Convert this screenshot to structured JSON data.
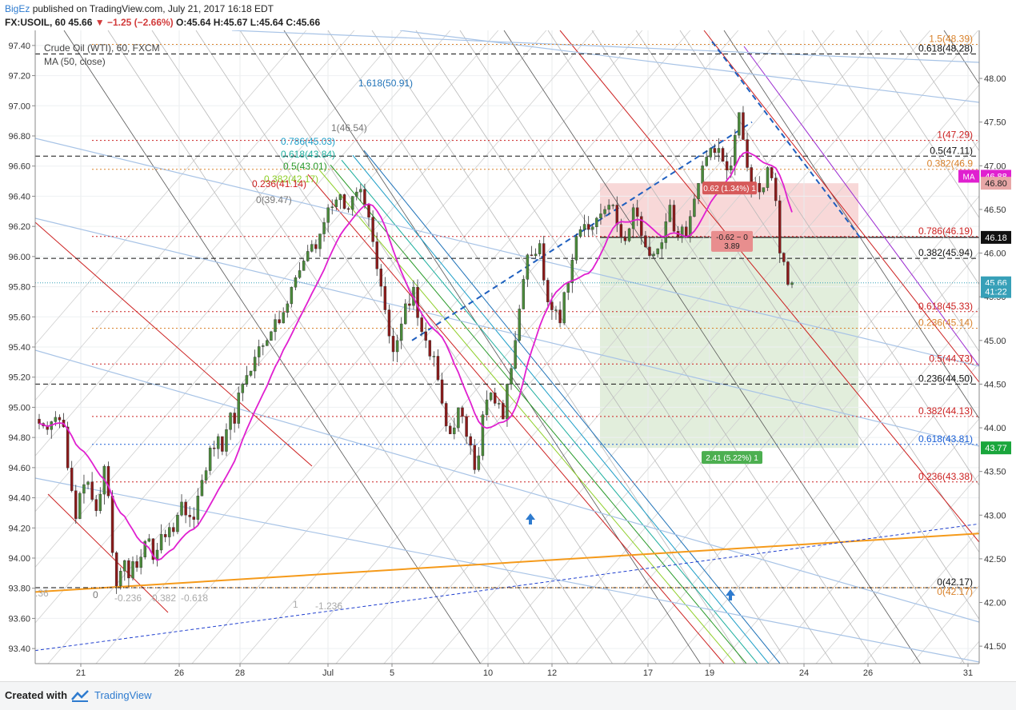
{
  "header": {
    "author": "BigEz",
    "published_text": "published on TradingView.com, July 21, 2017 16:18 EDT",
    "symbol": "FX:USOIL, 60",
    "last": "45.66",
    "change": "▼ −1.25 (−2.66%)",
    "ohlc": "O:45.64 H:45.67 L:45.64 C:45.66"
  },
  "legend": {
    "series_title": "Crude Oil (WTI), 60, FXCM",
    "indicator": "MA (50, close)"
  },
  "footer": {
    "created_with": "Created with",
    "brand": "TradingView"
  },
  "colors": {
    "up_candle": "#4a8a3a",
    "down_candle": "#8b1a1a",
    "ma": "#e020d0",
    "pitchfork_blue": "#1f5fbf",
    "orange_line": "#f59a1a",
    "fib_red": "#cc2020"
  },
  "chart_data": {
    "type": "candlestick",
    "title": "Crude Oil (WTI), 60, FXCM",
    "left_axis": {
      "range": [
        93.3,
        97.5
      ],
      "ticks": [
        "97.40",
        "97.20",
        "97.00",
        "96.80",
        "96.60",
        "96.40",
        "96.20",
        "96.00",
        "95.80",
        "95.60",
        "95.40",
        "95.20",
        "95.00",
        "94.80",
        "94.60",
        "94.40",
        "94.20",
        "94.00",
        "93.80",
        "93.60",
        "93.40"
      ]
    },
    "right_axis": {
      "range": [
        41.3,
        48.55
      ],
      "ticks": [
        "48.00",
        "47.50",
        "47.00",
        "46.50",
        "46.00",
        "45.50",
        "45.00",
        "44.50",
        "44.00",
        "43.50",
        "43.00",
        "42.50",
        "42.00",
        "41.50"
      ],
      "price_tags": [
        {
          "text": "46.88",
          "value": 46.88,
          "color": "#e020d0",
          "label": "MA"
        },
        {
          "text": "46.80",
          "value": 46.8,
          "color": "#e8a7a7"
        },
        {
          "text": "46.18",
          "value": 46.18,
          "color": "#111111"
        },
        {
          "text": "45.66",
          "value": 45.66,
          "color": "#37a0b8"
        },
        {
          "text": "41:22",
          "value": 45.56,
          "color": "#37a0b8"
        },
        {
          "text": "43.77",
          "value": 43.77,
          "color": "#1aa63c"
        }
      ]
    },
    "x_axis": {
      "labels": [
        "21",
        "26",
        "28",
        "Jul",
        "5",
        "10",
        "12",
        "17",
        "19",
        "24",
        "26",
        "31"
      ]
    },
    "candles_close": [
      44.05,
      44.02,
      43.98,
      44.07,
      44.12,
      44.09,
      44.01,
      43.54,
      43.28,
      42.96,
      43.25,
      43.35,
      43.38,
      43.18,
      43.05,
      43.24,
      43.56,
      43.22,
      42.57,
      42.19,
      42.36,
      42.48,
      42.28,
      42.47,
      42.4,
      42.52,
      42.7,
      42.73,
      42.49,
      42.6,
      42.78,
      42.75,
      42.86,
      42.81,
      43.0,
      43.15,
      43.0,
      42.98,
      42.95,
      43.22,
      43.4,
      43.51,
      43.77,
      43.76,
      43.9,
      43.73,
      43.98,
      44.17,
      44.05,
      44.4,
      44.5,
      44.6,
      44.65,
      44.81,
      44.93,
      44.94,
      45.0,
      45.1,
      45.24,
      45.2,
      45.32,
      45.42,
      45.61,
      45.72,
      45.8,
      45.91,
      46.02,
      46.1,
      46.05,
      46.22,
      46.35,
      46.52,
      46.53,
      46.61,
      46.67,
      46.51,
      46.5,
      46.65,
      46.7,
      46.73,
      46.56,
      46.41,
      46.13,
      45.82,
      45.62,
      45.35,
      45.05,
      44.87,
      45.0,
      45.19,
      45.42,
      45.4,
      45.61,
      45.26,
      45.1,
      45.0,
      44.82,
      44.82,
      44.55,
      44.28,
      44.02,
      43.93,
      44.0,
      44.23,
      44.13,
      43.9,
      43.8,
      43.52,
      43.68,
      44.15,
      44.32,
      44.4,
      44.28,
      44.28,
      44.1,
      44.5,
      44.68,
      45.0,
      45.36,
      45.7,
      45.98,
      45.97,
      45.99,
      46.11,
      45.69,
      45.44,
      45.35,
      45.35,
      45.2,
      45.55,
      45.66,
      45.92,
      46.19,
      46.27,
      46.33,
      46.27,
      46.3,
      46.4,
      46.45,
      46.5,
      46.55,
      46.55,
      46.33,
      46.18,
      46.14,
      46.28,
      46.52,
      46.42,
      46.2,
      46.07,
      45.97,
      45.99,
      46.05,
      46.12,
      46.36,
      46.55,
      46.25,
      46.18,
      46.3,
      46.2,
      46.42,
      46.62,
      46.8,
      47.0,
      47.1,
      47.2,
      47.15,
      47.2,
      47.05,
      46.95,
      47.0,
      47.35,
      47.61,
      47.3,
      46.98,
      46.75,
      46.8,
      46.7,
      46.75,
      46.98,
      46.86,
      46.6,
      46.0,
      45.9,
      45.64,
      45.66
    ],
    "moving_average": {
      "name": "MA (50, close)",
      "last": 46.88
    },
    "fib_retracements_right": [
      {
        "label": "1(47.29)",
        "value": 47.29,
        "color": "#cc2020"
      },
      {
        "label": "0.5(47.11)",
        "value": 47.11,
        "color": "#111111"
      },
      {
        "label": "0.382(46.9",
        "value": 46.96,
        "color": "#d9822b"
      },
      {
        "label": "0.618(48.28)",
        "value": 48.28,
        "color": "#111111"
      },
      {
        "label": "1.5(48.39)",
        "value": 48.39,
        "color": "#d9822b"
      },
      {
        "label": "0.786(46.19)",
        "value": 46.19,
        "color": "#cc2020"
      },
      {
        "label": "0.382(45.94)",
        "value": 45.94,
        "color": "#111111"
      },
      {
        "label": "0.618(45.33)",
        "value": 45.33,
        "color": "#cc2020"
      },
      {
        "label": "0.236(45.14)",
        "value": 45.14,
        "color": "#d9822b"
      },
      {
        "label": "0.5(44.73)",
        "value": 44.73,
        "color": "#cc2020"
      },
      {
        "label": "0.236(44.50)",
        "value": 44.5,
        "color": "#111111"
      },
      {
        "label": "0.382(44.13)",
        "value": 44.13,
        "color": "#cc2020"
      },
      {
        "label": "0.618(43.81)",
        "value": 43.81,
        "color": "#1a5fd6"
      },
      {
        "label": "0.236(43.38)",
        "value": 43.38,
        "color": "#cc2020"
      },
      {
        "label": "0(42.17)",
        "value": 42.17,
        "color": "#111111"
      },
      {
        "label": "0(42.17)",
        "value": 42.17,
        "color": "#d9822b"
      }
    ],
    "fan_labels": [
      {
        "label": "1.618(50.91)",
        "color": "#1f72b8"
      },
      {
        "label": "1(46.54)",
        "color": "#777777"
      },
      {
        "label": "0.786(45.03)",
        "color": "#1f9fc8"
      },
      {
        "label": "0.618(43.84)",
        "color": "#1eaf9e"
      },
      {
        "label": "0.5(43.01)",
        "color": "#2a9a2a"
      },
      {
        "label": "0.382(42.17)",
        "color": "#8fcf2a"
      },
      {
        "label": "0.236(41.14)",
        "color": "#cc2020"
      },
      {
        "label": "0(39.47)",
        "color": "#777777"
      },
      {
        "label": "0",
        "color": "#777777"
      },
      {
        "label": "-0.236",
        "color": "#aaaaaa"
      },
      {
        "label": "0.382",
        "color": "#aaaaaa"
      },
      {
        "label": "-0.618",
        "color": "#aaaaaa"
      },
      {
        "label": "1",
        "color": "#aaaaaa"
      },
      {
        "label": "-1.236",
        "color": "#aaaaaa"
      },
      {
        "label": ".36",
        "color": "#aaaaaa"
      }
    ],
    "position_tool": {
      "target_label": "2.41 (5.22%) 1",
      "stop_label": "0.62 (1.34%) 1",
      "entry_label_line1": "-0.62 ~ 0",
      "entry_label_line2": "3.89"
    }
  }
}
